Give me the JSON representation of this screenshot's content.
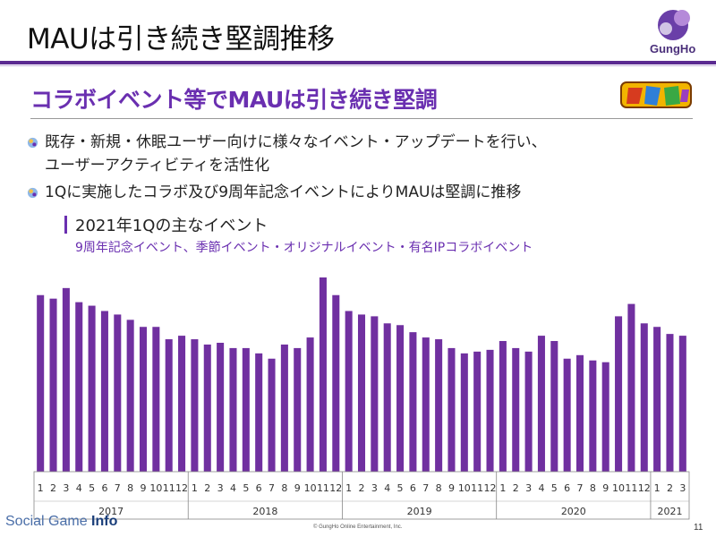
{
  "slide": {
    "title": "MAUは引き続き堅調推移",
    "logo_text": "GungHo",
    "subtitle": "コラボイベント等でMAUは引き続き堅調",
    "bullets": [
      "既存・新規・休眠ユーザー向けに様々なイベント・アップデートを行い、",
      "ユーザーアクティビティを活性化",
      "1Qに実施したコラボ及び9周年記念イベントによりMAUは堅調に推移"
    ],
    "section_heading": "2021年1Qの主なイベント",
    "section_sub": "9周年記念イベント、季節イベント・オリジナルイベント・有名IPコラボイベント",
    "footer_brand_a": "Social Game ",
    "footer_brand_b": "Info",
    "copyright": "© GungHo Online Entertainment, Inc.",
    "page_number": "11"
  },
  "colors": {
    "accent": "#6a2fb0",
    "bar": "#7030a0"
  },
  "icons": [
    "gungho-logo-icon",
    "puzzle-and-dragons-logo-icon",
    "bullet-orb-icon"
  ],
  "chart_data": {
    "type": "bar",
    "title": "",
    "xlabel": "",
    "ylabel": "",
    "y_axis_shown": false,
    "grid": false,
    "categories": [
      "1",
      "2",
      "3",
      "4",
      "5",
      "6",
      "7",
      "8",
      "9",
      "10",
      "11",
      "12",
      "1",
      "2",
      "3",
      "4",
      "5",
      "6",
      "7",
      "8",
      "9",
      "10",
      "11",
      "12",
      "1",
      "2",
      "3",
      "4",
      "5",
      "6",
      "7",
      "8",
      "9",
      "10",
      "11",
      "12",
      "1",
      "2",
      "3",
      "4",
      "5",
      "6",
      "7",
      "8",
      "9",
      "10",
      "11",
      "12",
      "1",
      "2",
      "3"
    ],
    "year_groups": [
      {
        "label": "2017",
        "count": 12
      },
      {
        "label": "2018",
        "count": 12
      },
      {
        "label": "2019",
        "count": 12
      },
      {
        "label": "2020",
        "count": 12
      },
      {
        "label": "2021",
        "count": 3
      }
    ],
    "values": [
      100,
      98,
      104,
      96,
      94,
      91,
      89,
      86,
      82,
      82,
      75,
      77,
      75,
      72,
      73,
      70,
      70,
      67,
      64,
      72,
      70,
      76,
      110,
      100,
      91,
      89,
      88,
      84,
      83,
      79,
      76,
      75,
      70,
      67,
      68,
      69,
      74,
      70,
      68,
      77,
      74,
      64,
      66,
      63,
      62,
      88,
      95,
      84,
      82,
      78,
      77
    ],
    "ylim": [
      0,
      110
    ]
  }
}
